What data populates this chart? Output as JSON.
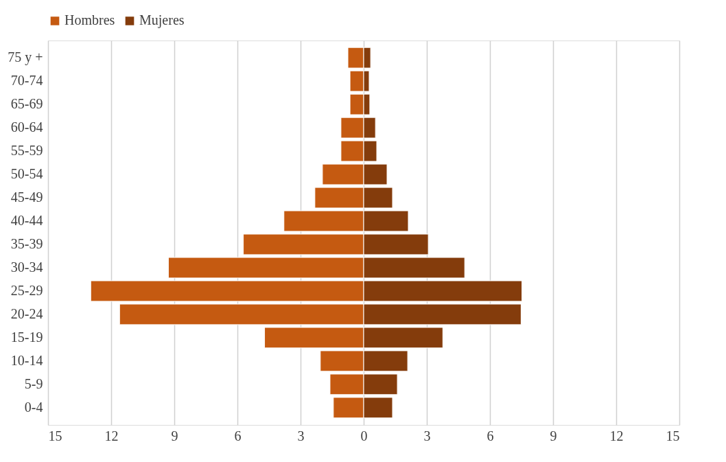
{
  "chart_data": {
    "type": "bar",
    "orientation": "horizontal",
    "categories": [
      "75 y +",
      "70-74",
      "65-69",
      "60-64",
      "55-59",
      "50-54",
      "45-49",
      "40-44",
      "35-39",
      "30-34",
      "25-29",
      "20-24",
      "15-19",
      "10-14",
      "5-9",
      "0-4"
    ],
    "series": [
      {
        "name": "Hombres",
        "color": "#c55a11",
        "values": [
          -0.75,
          -0.65,
          -0.65,
          -1.08,
          -1.08,
          -1.96,
          -2.32,
          -3.79,
          -5.72,
          -9.28,
          -12.97,
          -11.6,
          -4.71,
          -2.06,
          -1.6,
          -1.44
        ]
      },
      {
        "name": "Mujeres",
        "color": "#843c0c",
        "values": [
          0.33,
          0.26,
          0.29,
          0.56,
          0.62,
          1.11,
          1.37,
          2.12,
          3.07,
          4.8,
          7.52,
          7.48,
          3.76,
          2.09,
          1.6,
          1.37
        ]
      }
    ],
    "xlim": [
      -15,
      15
    ],
    "xticks": [
      {
        "value": -15,
        "label": "15"
      },
      {
        "value": -12,
        "label": "12"
      },
      {
        "value": -9,
        "label": "9"
      },
      {
        "value": -6,
        "label": "6"
      },
      {
        "value": -3,
        "label": "3"
      },
      0,
      3,
      6,
      9,
      12,
      15
    ],
    "grid": "x",
    "legend": "top",
    "stacked": true
  }
}
